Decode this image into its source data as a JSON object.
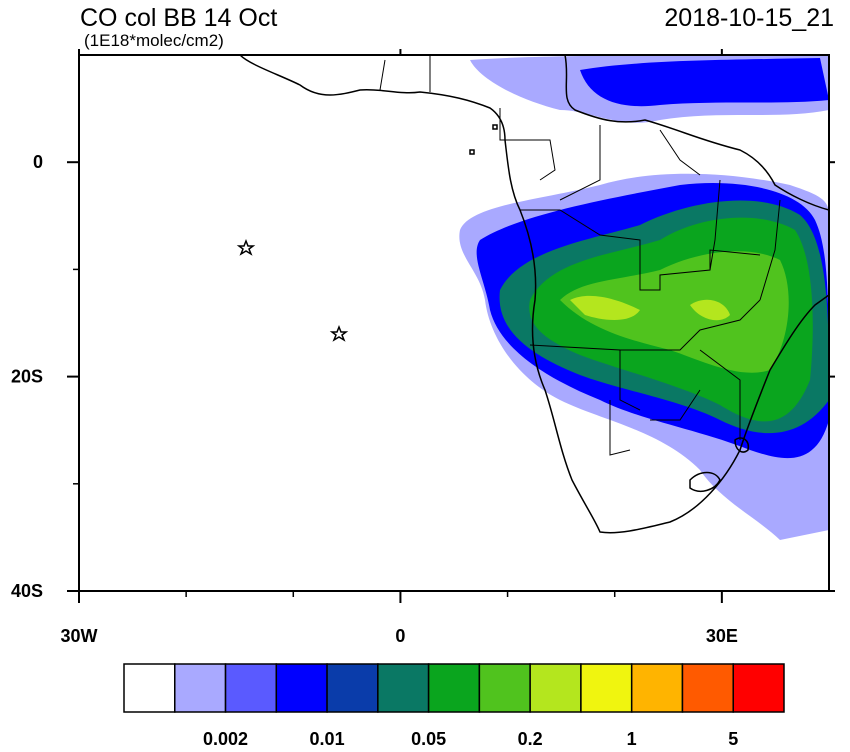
{
  "map": {
    "title": "CO col BB 14 Oct",
    "subtitle": "(1E18*molec/cm2)",
    "timestamp": "2018-10-15_21",
    "lon_range": [
      -30,
      40
    ],
    "lat_range": [
      -40,
      10
    ],
    "lon_ticks": [
      {
        "value": -30,
        "label": "30W"
      },
      0,
      {
        "value": 30,
        "label": "30E"
      }
    ],
    "lat_ticks": [
      0,
      {
        "value": -20,
        "label": "20S"
      },
      {
        "value": -40,
        "label": "40S"
      }
    ],
    "minor_lon_ticks": [
      -20,
      -10,
      10,
      20
    ],
    "minor_lat_ticks": [
      -10,
      -30
    ],
    "colorbar": {
      "colors": [
        "#ffffff",
        "#a9a9ff",
        "#5a5aff",
        "#0000ff",
        "#0a3caa",
        "#0a7864",
        "#0aa51e",
        "#50c31e",
        "#b4e61e",
        "#f0f50f",
        "#ffb400",
        "#ff5a00",
        "#ff0000"
      ],
      "labels": [
        0.002,
        0.01,
        0.05,
        0.2,
        1,
        5
      ]
    }
  }
}
